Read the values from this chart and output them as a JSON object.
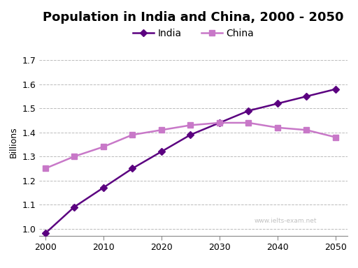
{
  "title": "Population in India and China, 2000 - 2050",
  "ylabel": "Billions",
  "india_x": [
    2000,
    2005,
    2010,
    2015,
    2020,
    2025,
    2030,
    2035,
    2040,
    2045,
    2050
  ],
  "india_y": [
    0.98,
    1.09,
    1.17,
    1.25,
    1.32,
    1.39,
    1.44,
    1.49,
    1.52,
    1.55,
    1.58
  ],
  "china_x": [
    2000,
    2005,
    2010,
    2015,
    2020,
    2025,
    2030,
    2035,
    2040,
    2045,
    2050
  ],
  "china_y": [
    1.25,
    1.3,
    1.34,
    1.39,
    1.41,
    1.43,
    1.44,
    1.44,
    1.42,
    1.41,
    1.38
  ],
  "india_color": "#5b0080",
  "china_color": "#c878c8",
  "india_marker": "D",
  "china_marker": "s",
  "ylim": [
    0.97,
    1.75
  ],
  "yticks": [
    1.0,
    1.1,
    1.2,
    1.3,
    1.4,
    1.5,
    1.6,
    1.7
  ],
  "xticks": [
    2000,
    2010,
    2020,
    2030,
    2040,
    2050
  ],
  "xlim": [
    1999,
    2052
  ],
  "background_color": "#ffffff",
  "grid_color": "#aaaaaa",
  "watermark": "www.ielts-exam.net",
  "title_fontsize": 13,
  "axis_fontsize": 9,
  "legend_fontsize": 10
}
